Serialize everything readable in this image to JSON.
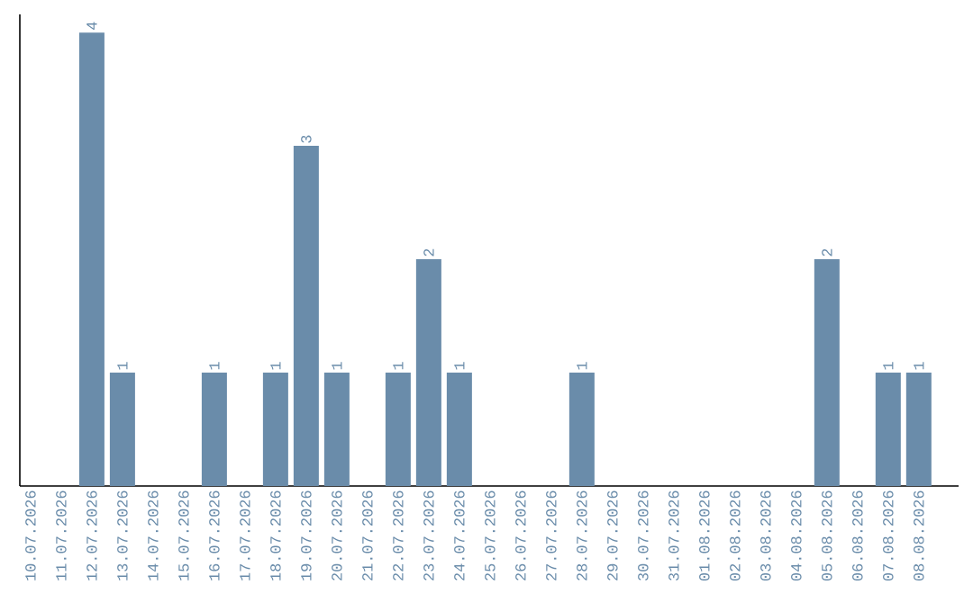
{
  "chart_data": {
    "type": "bar",
    "categories": [
      "10.07.2026",
      "11.07.2026",
      "12.07.2026",
      "13.07.2026",
      "14.07.2026",
      "15.07.2026",
      "16.07.2026",
      "17.07.2026",
      "18.07.2026",
      "19.07.2026",
      "20.07.2026",
      "21.07.2026",
      "22.07.2026",
      "23.07.2026",
      "24.07.2026",
      "25.07.2026",
      "26.07.2026",
      "27.07.2026",
      "28.07.2026",
      "29.07.2026",
      "30.07.2026",
      "31.07.2026",
      "01.08.2026",
      "02.08.2026",
      "03.08.2026",
      "04.08.2026",
      "05.08.2026",
      "06.08.2026",
      "07.08.2026",
      "08.08.2026"
    ],
    "values": [
      0,
      0,
      4,
      1,
      0,
      0,
      1,
      0,
      1,
      3,
      1,
      0,
      1,
      2,
      1,
      0,
      0,
      0,
      1,
      0,
      0,
      0,
      0,
      0,
      0,
      0,
      2,
      0,
      1,
      1
    ],
    "value_labels": [
      null,
      null,
      "4",
      "1",
      null,
      null,
      "1",
      null,
      "1",
      "3",
      "1",
      null,
      "1",
      "2",
      "1",
      null,
      null,
      null,
      "1",
      null,
      null,
      null,
      null,
      null,
      null,
      null,
      "2",
      null,
      "1",
      "1"
    ],
    "color": "#6a8caa",
    "ylim": [
      0,
      4.16
    ],
    "tick_labels": "x"
  }
}
